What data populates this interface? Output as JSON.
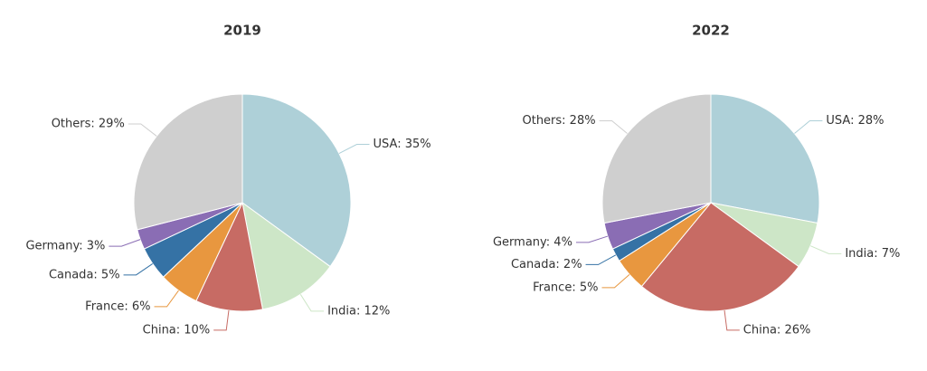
{
  "chart_data": [
    {
      "type": "pie",
      "title": "2019",
      "categories": [
        "USA",
        "India",
        "China",
        "France",
        "Canada",
        "Germany",
        "Others"
      ],
      "values": [
        35,
        12,
        10,
        6,
        5,
        3,
        29
      ],
      "value_labels": [
        "USA: 35%",
        "India: 12%",
        "China: 10%",
        "France: 6%",
        "Canada: 5%",
        "Germany: 3%",
        "Others: 29%"
      ],
      "colors": [
        "#aed0d8",
        "#cde6c7",
        "#c76b64",
        "#e8973f",
        "#3572a5",
        "#8a6db4",
        "#cfcfcf"
      ]
    },
    {
      "type": "pie",
      "title": "2022",
      "categories": [
        "USA",
        "India",
        "China",
        "France",
        "Canada",
        "Germany",
        "Others"
      ],
      "values": [
        28,
        7,
        26,
        5,
        2,
        4,
        28
      ],
      "value_labels": [
        "USA: 28%",
        "India: 7%",
        "China: 26%",
        "France: 5%",
        "Canada: 2%",
        "Germany: 4%",
        "Others: 28%"
      ],
      "colors": [
        "#aed0d8",
        "#cde6c7",
        "#c76b64",
        "#e8973f",
        "#3572a5",
        "#8a6db4",
        "#cfcfcf"
      ]
    }
  ]
}
